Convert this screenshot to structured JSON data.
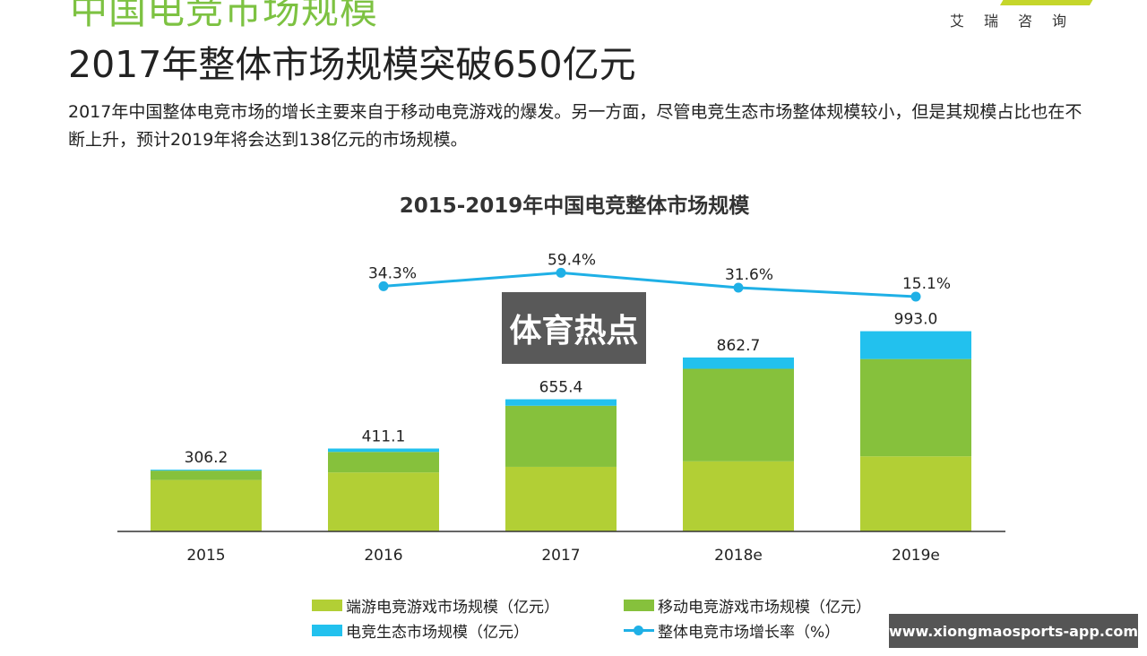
{
  "header": {
    "section_title": "中国电竞市场规模",
    "brand": "艾瑞咨询",
    "headline": "2017年整体市场规模突破650亿元",
    "description": "2017年中国整体电竞市场的增长主要来自于移动电竞游戏的爆发。另一方面，尽管电竞生态市场整体规模较小，但是其规模占比也在不断上升，预计2019年将会达到138亿元的市场规模。"
  },
  "watermark": "体育热点",
  "url_badge": "www.xiongmaosports-app.com",
  "colors": {
    "pc": "#b2cf35",
    "mobile": "#86c13c",
    "ecosystem": "#22c1ee",
    "growth": "#1fb0e6"
  },
  "chart_data": {
    "type": "bar",
    "stacked": true,
    "title": "2015-2019年中国电竞整体市场规模",
    "categories": [
      "2015",
      "2016",
      "2017",
      "2018e",
      "2019e"
    ],
    "series": [
      {
        "name": "端游电竞游戏市场规模（亿元）",
        "values": [
          255.1,
          292.4,
          320.2,
          347.6,
          372.5
        ]
      },
      {
        "name": "移动电竞游戏市场规模（亿元）",
        "values": [
          46.5,
          102.0,
          303.1,
          459.0,
          482.5
        ]
      },
      {
        "name": "电竞生态市场规模（亿元）",
        "values": [
          4.6,
          16.7,
          32.1,
          56.1,
          138.0
        ]
      }
    ],
    "totals": [
      306.2,
      411.1,
      655.4,
      862.7,
      993.0
    ],
    "total_labels": [
      "306.2",
      "411.1",
      "655.4",
      "862.7",
      "993.0"
    ],
    "line_series": {
      "name": "整体电竞市场增长率（%）",
      "categories": [
        "2016",
        "2017",
        "2018e",
        "2019e"
      ],
      "values": [
        34.3,
        59.4,
        31.6,
        15.1
      ],
      "labels": [
        "34.3%",
        "59.4%",
        "31.6%",
        "15.1%"
      ]
    },
    "ylim": [
      0,
      1000
    ],
    "grid": false,
    "legend_position": "bottom"
  }
}
